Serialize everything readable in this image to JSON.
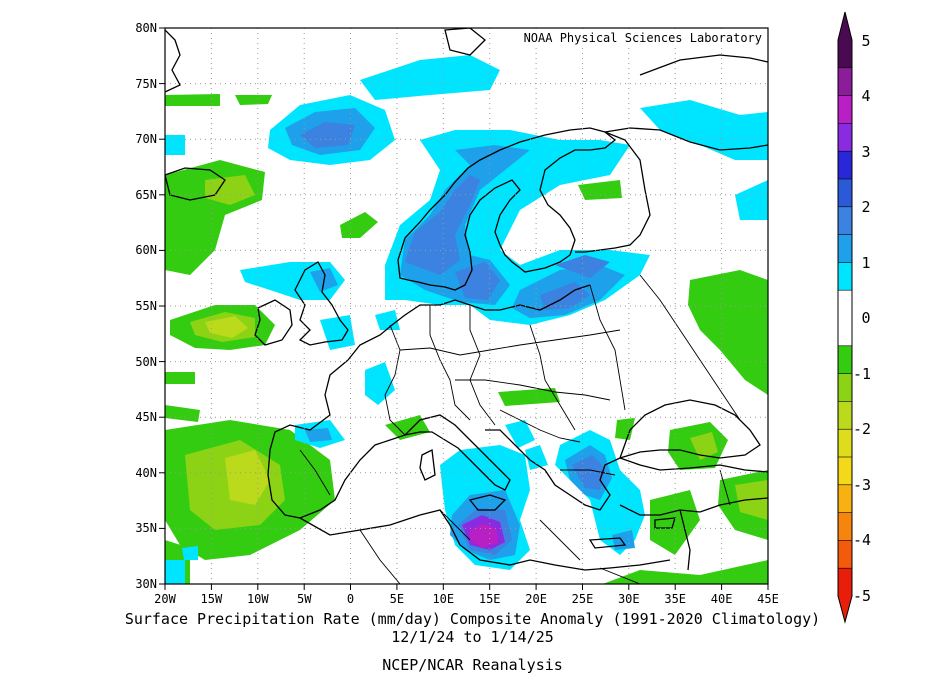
{
  "map": {
    "credit": "NOAA Physical Sciences Laboratory",
    "lat_labels": [
      "30N",
      "35N",
      "40N",
      "45N",
      "50N",
      "55N",
      "60N",
      "65N",
      "70N",
      "75N",
      "80N"
    ],
    "lon_labels": [
      "20W",
      "15W",
      "10W",
      "5W",
      "0",
      "5E",
      "10E",
      "15E",
      "20E",
      "25E",
      "30E",
      "35E",
      "40E",
      "45E"
    ],
    "extent": {
      "lon_min": -20,
      "lon_max": 45,
      "lat_min": 30,
      "lat_max": 80
    }
  },
  "colorbar": {
    "labels": [
      "5",
      "4",
      "3",
      "2",
      "1",
      "0",
      "-1",
      "-2",
      "-3",
      "-4",
      "-5"
    ],
    "levels_top_to_bottom": [
      {
        "range": "4.5 to 5",
        "color": "#4a0a52"
      },
      {
        "range": "4 to 4.5",
        "color": "#8b1c9a"
      },
      {
        "range": "3.5 to 4",
        "color": "#b81fc4"
      },
      {
        "range": "3 to 3.5",
        "color": "#8a2be2"
      },
      {
        "range": "2.5 to 3",
        "color": "#2828d8"
      },
      {
        "range": "2 to 2.5",
        "color": "#2a5ad8"
      },
      {
        "range": "1.5 to 2",
        "color": "#3c82e0"
      },
      {
        "range": "1 to 1.5",
        "color": "#1ea0ea"
      },
      {
        "range": "0.5 to 1",
        "color": "#00e5ff"
      },
      {
        "range": "0 to 0.5",
        "color": "#ffffff"
      },
      {
        "range": "-0.5 to 0",
        "color": "#ffffff"
      },
      {
        "range": "-1 to -0.5",
        "color": "#33cc11"
      },
      {
        "range": "-1.5 to -1",
        "color": "#8cd316"
      },
      {
        "range": "-2 to -1.5",
        "color": "#bada1b"
      },
      {
        "range": "-2.5 to -2",
        "color": "#dedd1c"
      },
      {
        "range": "-3 to -2.5",
        "color": "#f4d81a"
      },
      {
        "range": "-3.5 to -3",
        "color": "#f7b212"
      },
      {
        "range": "-4 to -3.5",
        "color": "#f6850e"
      },
      {
        "range": "-4.5 to -4",
        "color": "#f35a0b"
      },
      {
        "range": "-5 to -4.5",
        "color": "#e81d0a"
      }
    ]
  },
  "anomaly_regions": [
    {
      "name": "Norway coast",
      "level": "1 to 2"
    },
    {
      "name": "Norwegian Sea",
      "level": "1 to 2"
    },
    {
      "name": "Baltic Sea",
      "level": "1 to 2"
    },
    {
      "name": "Central Mediterranean / south of Sicily",
      "level": "3.5 to 4"
    },
    {
      "name": "Aegean Sea",
      "level": "1.5 to 2"
    },
    {
      "name": "Iberia and eastern Atlantic",
      "level": "-1 to -2"
    },
    {
      "name": "West of Ireland",
      "level": "-1 to -2"
    },
    {
      "name": "Western Russia",
      "level": "-0.5 to -1"
    },
    {
      "name": "Eastern Turkey",
      "level": "-0.5 to -1.5"
    }
  ],
  "captions": {
    "line1": "Surface Precipitation Rate (mm/day) Composite Anomaly (1991-2020 Climatology)",
    "line2": "12/1/24  to 1/14/25",
    "line3": "NCEP/NCAR Reanalysis"
  }
}
